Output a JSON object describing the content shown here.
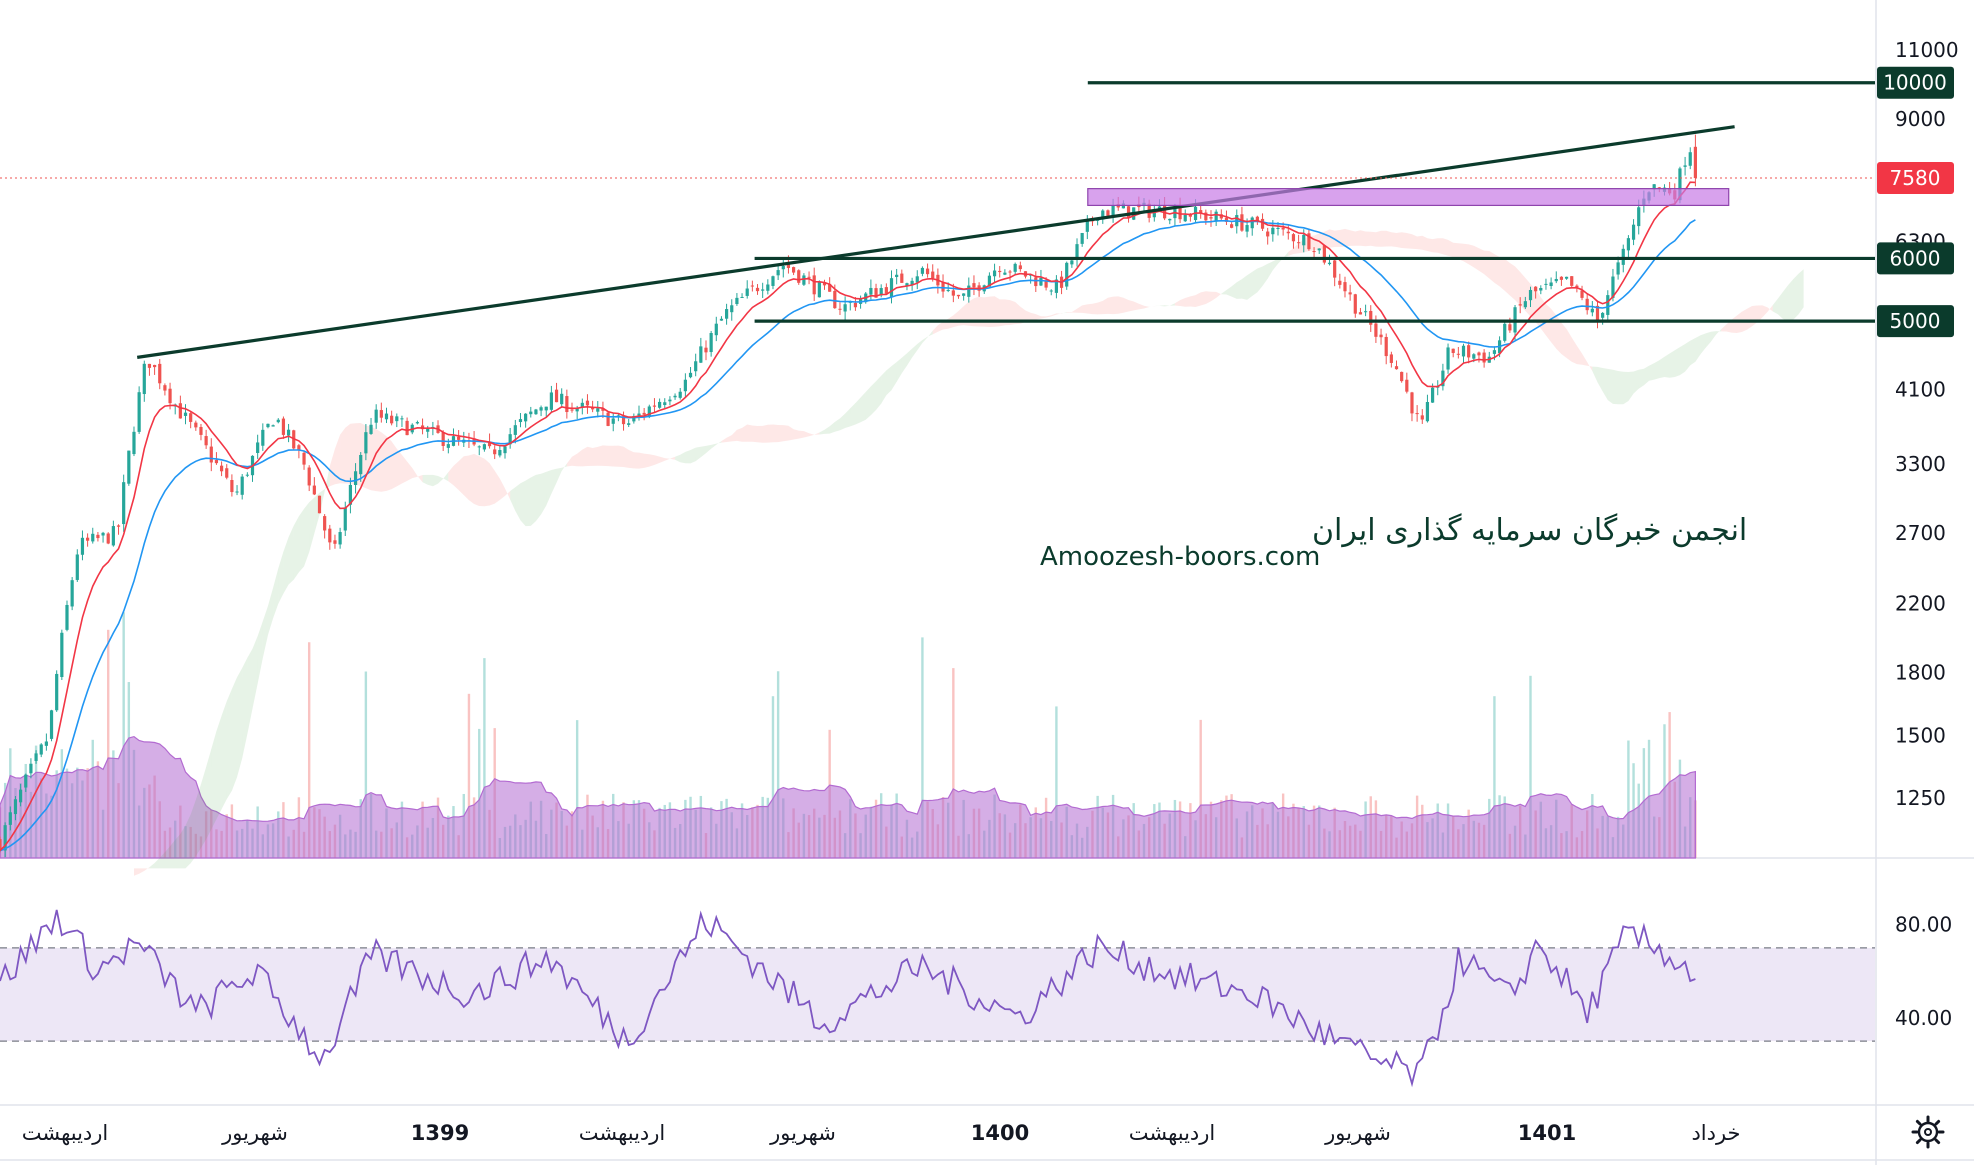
{
  "watermark": {
    "line1": "انجمن خبرگان سرمایه گذاری ایران",
    "line2": "Amoozesh-boors.com"
  },
  "price_axis": {
    "ticks": [
      "11000",
      "9000",
      "6300",
      "4100",
      "3300",
      "2700",
      "2200",
      "1800",
      "1500",
      "1250"
    ],
    "badges": [
      {
        "label": "10000",
        "color": "#0b3b2c"
      },
      {
        "label": "7580",
        "color": "#f23645"
      },
      {
        "label": "6000",
        "color": "#0b3b2c"
      },
      {
        "label": "5000",
        "color": "#0b3b2c"
      }
    ]
  },
  "rsi_axis": {
    "ticks": [
      "80.00",
      "40.00"
    ]
  },
  "time_axis": [
    {
      "label": "اردیبهشت",
      "bold": false
    },
    {
      "label": "شهریور",
      "bold": false
    },
    {
      "label": "1399",
      "bold": true
    },
    {
      "label": "اردیبهشت",
      "bold": false
    },
    {
      "label": "شهریور",
      "bold": false
    },
    {
      "label": "1400",
      "bold": true
    },
    {
      "label": "اردیبهشت",
      "bold": false
    },
    {
      "label": "شهریور",
      "bold": false
    },
    {
      "label": "1401",
      "bold": true
    },
    {
      "label": "خرداد",
      "bold": false
    }
  ],
  "settings_icon": "gear-icon",
  "colors": {
    "up": "#26a69a",
    "down": "#ef5350",
    "ema_fast": "#f23645",
    "ema_slow": "#2196f3",
    "trendline": "#0b3b2c",
    "zone": "#c77be6",
    "rsi_line": "#7e57c2",
    "rsi_band": "#ede7f6",
    "volume_ma": "#b36bd1"
  },
  "chart_data": [
    {
      "type": "candlestick",
      "title": "",
      "yscale": "log",
      "ylim": [
        1050,
        12000
      ],
      "last_price": 7580,
      "horizontal_levels": [
        10000,
        6000,
        5000
      ],
      "resistance_zone": [
        7000,
        7350
      ],
      "trendline": {
        "start": {
          "t": 0.07,
          "price": 4500
        },
        "end": {
          "t": 0.885,
          "price": 8800
        }
      },
      "anchors": [
        {
          "t": 0.0,
          "price": 1100
        },
        {
          "t": 0.025,
          "price": 1500
        },
        {
          "t": 0.04,
          "price": 2600
        },
        {
          "t": 0.06,
          "price": 2700
        },
        {
          "t": 0.075,
          "price": 4500
        },
        {
          "t": 0.09,
          "price": 3900
        },
        {
          "t": 0.12,
          "price": 3000
        },
        {
          "t": 0.14,
          "price": 3800
        },
        {
          "t": 0.155,
          "price": 3300
        },
        {
          "t": 0.17,
          "price": 2500
        },
        {
          "t": 0.19,
          "price": 3800
        },
        {
          "t": 0.22,
          "price": 3600
        },
        {
          "t": 0.25,
          "price": 3400
        },
        {
          "t": 0.28,
          "price": 4000
        },
        {
          "t": 0.32,
          "price": 3700
        },
        {
          "t": 0.35,
          "price": 4200
        },
        {
          "t": 0.37,
          "price": 5100
        },
        {
          "t": 0.4,
          "price": 5900
        },
        {
          "t": 0.43,
          "price": 5200
        },
        {
          "t": 0.47,
          "price": 5800
        },
        {
          "t": 0.49,
          "price": 5300
        },
        {
          "t": 0.51,
          "price": 5900
        },
        {
          "t": 0.54,
          "price": 5500
        },
        {
          "t": 0.56,
          "price": 6900
        },
        {
          "t": 0.6,
          "price": 6900
        },
        {
          "t": 0.64,
          "price": 6600
        },
        {
          "t": 0.67,
          "price": 6300
        },
        {
          "t": 0.69,
          "price": 5300
        },
        {
          "t": 0.71,
          "price": 4500
        },
        {
          "t": 0.725,
          "price": 3650
        },
        {
          "t": 0.74,
          "price": 4600
        },
        {
          "t": 0.76,
          "price": 4500
        },
        {
          "t": 0.78,
          "price": 5400
        },
        {
          "t": 0.8,
          "price": 5600
        },
        {
          "t": 0.815,
          "price": 5000
        },
        {
          "t": 0.83,
          "price": 6200
        },
        {
          "t": 0.84,
          "price": 7400
        },
        {
          "t": 0.855,
          "price": 7300
        },
        {
          "t": 0.862,
          "price": 8400
        },
        {
          "t": 0.865,
          "price": 7580
        }
      ],
      "rsi": {
        "ylim": [
          0,
          100
        ],
        "upper": 70,
        "lower": 30,
        "anchors": [
          {
            "t": 0.0,
            "v": 55
          },
          {
            "t": 0.03,
            "v": 84
          },
          {
            "t": 0.05,
            "v": 60
          },
          {
            "t": 0.07,
            "v": 72
          },
          {
            "t": 0.1,
            "v": 42
          },
          {
            "t": 0.13,
            "v": 60
          },
          {
            "t": 0.165,
            "v": 22
          },
          {
            "t": 0.19,
            "v": 67
          },
          {
            "t": 0.24,
            "v": 50
          },
          {
            "t": 0.28,
            "v": 66
          },
          {
            "t": 0.32,
            "v": 30
          },
          {
            "t": 0.36,
            "v": 82
          },
          {
            "t": 0.42,
            "v": 38
          },
          {
            "t": 0.47,
            "v": 62
          },
          {
            "t": 0.52,
            "v": 40
          },
          {
            "t": 0.56,
            "v": 70
          },
          {
            "t": 0.6,
            "v": 58
          },
          {
            "t": 0.64,
            "v": 50
          },
          {
            "t": 0.67,
            "v": 35
          },
          {
            "t": 0.7,
            "v": 22
          },
          {
            "t": 0.725,
            "v": 15
          },
          {
            "t": 0.745,
            "v": 66
          },
          {
            "t": 0.77,
            "v": 48
          },
          {
            "t": 0.785,
            "v": 72
          },
          {
            "t": 0.81,
            "v": 42
          },
          {
            "t": 0.83,
            "v": 76
          },
          {
            "t": 0.85,
            "v": 68
          },
          {
            "t": 0.865,
            "v": 58
          }
        ]
      }
    }
  ]
}
